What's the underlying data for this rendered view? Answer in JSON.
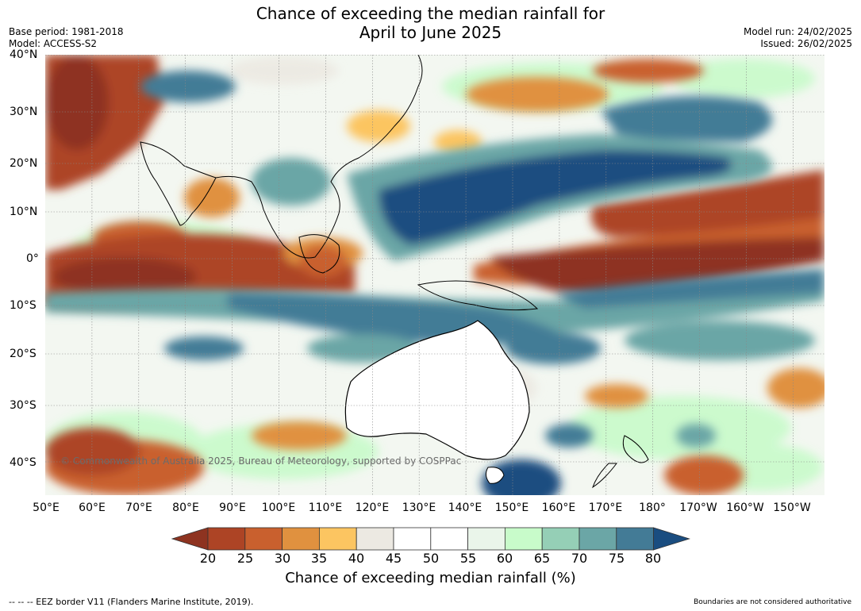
{
  "title": {
    "line1": "Chance of exceeding the median rainfall for",
    "line2": "April to June 2025"
  },
  "meta": {
    "base_period": "Base period: 1981-2018",
    "model": "Model: ACCESS-S2",
    "model_run": "Model run: 24/02/2025",
    "issued": "Issued: 26/02/2025"
  },
  "map": {
    "lat_labels": [
      "40°N",
      "30°N",
      "20°N",
      "10°N",
      "0°",
      "10°S",
      "20°S",
      "30°S",
      "40°S"
    ],
    "lon_labels": [
      "50°E",
      "60°E",
      "70°E",
      "80°E",
      "90°E",
      "100°E",
      "110°E",
      "120°E",
      "130°E",
      "140°E",
      "150°E",
      "160°E",
      "170°E",
      "180°",
      "170°W",
      "160°W",
      "150°W"
    ],
    "copyright": "© Commonwealth of Australia 2025, Bureau of Meteorology, supported by COSPPac"
  },
  "colorbar": {
    "ticks": [
      "20",
      "25",
      "30",
      "35",
      "40",
      "45",
      "50",
      "55",
      "60",
      "65",
      "70",
      "75",
      "80"
    ],
    "colors": [
      "#8e3320",
      "#ad4425",
      "#c9602e",
      "#e0913f",
      "#fcc561",
      "#ece9e2",
      "#ffffff",
      "#ffffff",
      "#eaf5ea",
      "#c8fbca",
      "#95cfb6",
      "#6ba6a6",
      "#437b96",
      "#1a4d80"
    ],
    "label": "Chance of exceeding median rainfall (%)"
  },
  "footer": {
    "eez": "--  --  -- EEZ border V11 (Flanders Marine Institute, 2019).",
    "boundaries": "Boundaries are not considered authoritative"
  }
}
